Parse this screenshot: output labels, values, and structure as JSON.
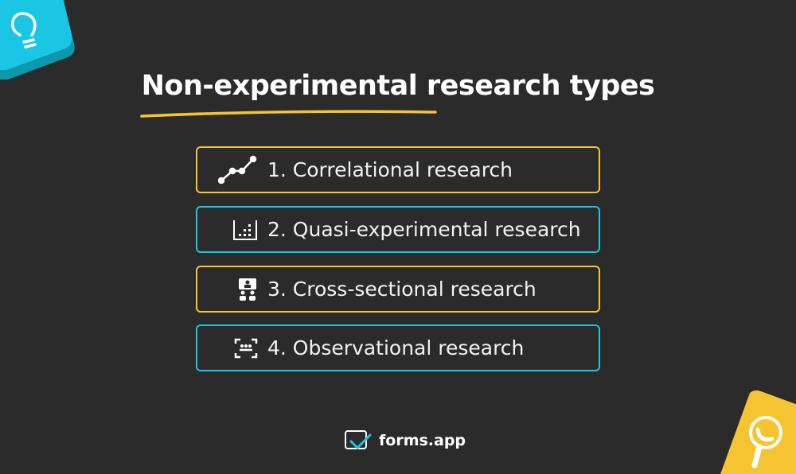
{
  "title": "Non-experimental research types",
  "items": [
    {
      "label": "1. Correlational research",
      "icon": "line-chart-icon",
      "border": "#f7c431"
    },
    {
      "label": "2. Quasi-experimental research",
      "icon": "bar-chart-icon",
      "border": "#1bc6e4"
    },
    {
      "label": "3. Cross-sectional research",
      "icon": "group-presentation-icon",
      "border": "#f7c431"
    },
    {
      "label": "4. Observational research",
      "icon": "scan-icon",
      "border": "#1bc6e4"
    }
  ],
  "brand": {
    "name": "forms",
    "tld": ".app",
    "accent": "#1bc6e4"
  },
  "colors": {
    "background": "#2b2b2b",
    "yellow": "#f7c431",
    "cyan": "#1bc6e4"
  }
}
